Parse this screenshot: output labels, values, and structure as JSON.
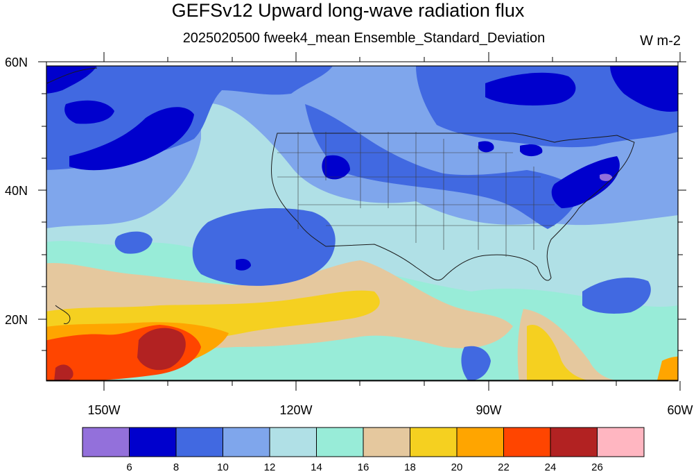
{
  "title": "GEFSv12 Upward long-wave radiation flux",
  "subtitle": "2025020500 fweek4_mean Ensemble_Standard_Deviation",
  "units": "W m-2",
  "lat_labels": [
    "60N",
    "40N",
    "20N"
  ],
  "lon_labels": [
    "150W",
    "120W",
    "90W",
    "60W"
  ],
  "colorbar": {
    "levels": [
      "6",
      "8",
      "10",
      "12",
      "14",
      "16",
      "18",
      "20",
      "22",
      "24",
      "26"
    ],
    "colors": [
      "#9370db",
      "#0000cd",
      "#4169e1",
      "#7fa6ec",
      "#b0e0e6",
      "#98ecd8",
      "#e5c89e",
      "#f5d020",
      "#ffa500",
      "#ff4500",
      "#b22222",
      "#ffb6c1"
    ]
  },
  "map": {
    "region": "North Pacific / North America",
    "lon_range": [
      "159W",
      "60W"
    ],
    "lat_range": [
      "10N",
      "60N"
    ]
  }
}
